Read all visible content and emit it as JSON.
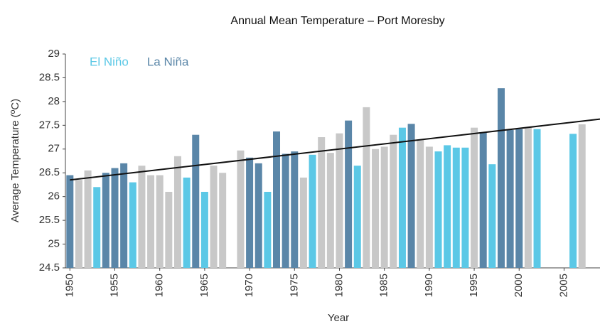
{
  "chart_data": {
    "type": "bar",
    "title": "Annual Mean Temperature – Port Moresby",
    "x_label": "Year",
    "y_label": "Average Temperature (ºC)",
    "x": [
      1950,
      1951,
      1952,
      1953,
      1954,
      1955,
      1956,
      1957,
      1958,
      1959,
      1960,
      1961,
      1962,
      1963,
      1964,
      1965,
      1966,
      1967,
      1968,
      1969,
      1970,
      1971,
      1972,
      1973,
      1974,
      1975,
      1976,
      1977,
      1978,
      1979,
      1980,
      1981,
      1982,
      1983,
      1984,
      1985,
      1986,
      1987,
      1988,
      1989,
      1990,
      1991,
      1992,
      1993,
      1994,
      1995,
      1996,
      1997,
      1998,
      1999,
      2000,
      2001,
      2002,
      2003,
      2004,
      2005,
      2006,
      2007
    ],
    "values": [
      26.45,
      26.35,
      26.55,
      26.2,
      26.5,
      26.6,
      26.7,
      26.3,
      26.65,
      26.45,
      26.45,
      26.1,
      26.85,
      26.4,
      27.3,
      26.1,
      26.65,
      26.5,
      null,
      26.97,
      26.82,
      26.7,
      26.1,
      27.37,
      26.9,
      26.95,
      26.4,
      26.88,
      27.25,
      26.92,
      27.33,
      27.6,
      26.65,
      27.88,
      27.0,
      27.05,
      27.3,
      27.45,
      27.53,
      27.2,
      27.05,
      26.95,
      27.08,
      27.03,
      27.03,
      27.45,
      27.35,
      26.68,
      28.28,
      27.4,
      27.42,
      27.45,
      27.42,
      null,
      null,
      null,
      27.32,
      27.52
    ],
    "bar_colors": [
      "#5a86a8",
      "#c8c8c8",
      "#c8c8c8",
      "#5bc8e6",
      "#5a86a8",
      "#5a86a8",
      "#5a86a8",
      "#5bc8e6",
      "#c8c8c8",
      "#c8c8c8",
      "#c8c8c8",
      "#c8c8c8",
      "#c8c8c8",
      "#5bc8e6",
      "#5a86a8",
      "#5bc8e6",
      "#c8c8c8",
      "#c8c8c8",
      "#c8c8c8",
      "#c8c8c8",
      "#5a86a8",
      "#5a86a8",
      "#5bc8e6",
      "#5a86a8",
      "#5a86a8",
      "#5a86a8",
      "#c8c8c8",
      "#5bc8e6",
      "#c8c8c8",
      "#c8c8c8",
      "#c8c8c8",
      "#5a86a8",
      "#5bc8e6",
      "#c8c8c8",
      "#c8c8c8",
      "#c8c8c8",
      "#c8c8c8",
      "#5bc8e6",
      "#5a86a8",
      "#c8c8c8",
      "#c8c8c8",
      "#5bc8e6",
      "#5bc8e6",
      "#5bc8e6",
      "#5bc8e6",
      "#c8c8c8",
      "#5a86a8",
      "#5bc8e6",
      "#5a86a8",
      "#5a86a8",
      "#5a86a8",
      "#c8c8c8",
      "#5bc8e6",
      "#c8c8c8",
      "#c8c8c8",
      "#c8c8c8",
      "#5bc8e6",
      "#c8c8c8"
    ],
    "legend": [
      {
        "name": "El Niño",
        "color": "#5bc8e6"
      },
      {
        "name": "La Niña",
        "color": "#5a86a8"
      }
    ],
    "trendline": {
      "color": "#111111",
      "x": [
        1950,
        2009
      ],
      "values": [
        26.35,
        27.63
      ]
    },
    "xlim": [
      1949.5,
      2009
    ],
    "xticks": [
      1950,
      1955,
      1960,
      1965,
      1970,
      1975,
      1980,
      1985,
      1990,
      1995,
      2000,
      2005
    ],
    "ylim": [
      24.5,
      29
    ],
    "yticks": [
      24.5,
      25,
      25.5,
      26,
      26.5,
      27,
      27.5,
      28,
      28.5,
      29
    ]
  }
}
